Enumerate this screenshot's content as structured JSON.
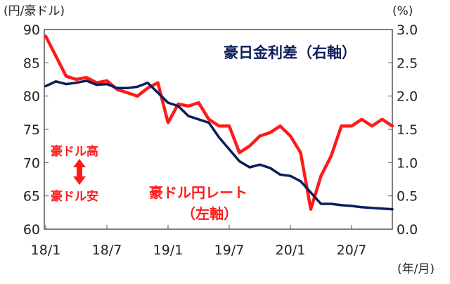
{
  "chart_data": {
    "type": "line",
    "left_axis_unit": "(円/豪ドル)",
    "right_axis_unit": "(%)",
    "x_axis_unit": "(年/月)",
    "x_ticks": [
      "18/1",
      "18/7",
      "19/1",
      "19/7",
      "20/1",
      "20/7"
    ],
    "y_left": {
      "ticks": [
        "90",
        "85",
        "80",
        "75",
        "70",
        "65",
        "60"
      ],
      "range": [
        60,
        90
      ]
    },
    "y_right": {
      "ticks": [
        "3.0",
        "2.5",
        "2.0",
        "1.5",
        "1.0",
        "0.5",
        "0.0"
      ],
      "range": [
        0,
        3
      ]
    },
    "grid": false,
    "series": [
      {
        "name": "豪ドル円レート",
        "axis": "left",
        "color": "#ff1a1a",
        "points": [
          [
            "2018-01",
            89.0
          ],
          [
            "2018-02",
            86.0
          ],
          [
            "2018-03",
            83.0
          ],
          [
            "2018-04",
            82.5
          ],
          [
            "2018-05",
            82.8
          ],
          [
            "2018-06",
            82.0
          ],
          [
            "2018-07",
            82.3
          ],
          [
            "2018-08",
            81.0
          ],
          [
            "2018-09",
            80.5
          ],
          [
            "2018-10",
            80.0
          ],
          [
            "2018-11",
            81.2
          ],
          [
            "2018-12",
            82.0
          ],
          [
            "2019-01",
            76.0
          ],
          [
            "2019-02",
            78.8
          ],
          [
            "2019-03",
            78.5
          ],
          [
            "2019-04",
            79.0
          ],
          [
            "2019-05",
            76.5
          ],
          [
            "2019-06",
            75.5
          ],
          [
            "2019-07",
            75.5
          ],
          [
            "2019-08",
            71.5
          ],
          [
            "2019-09",
            72.5
          ],
          [
            "2019-10",
            74.0
          ],
          [
            "2019-11",
            74.5
          ],
          [
            "2019-12",
            75.5
          ],
          [
            "2020-01",
            74.0
          ],
          [
            "2020-02",
            71.5
          ],
          [
            "2020-03",
            63.0
          ],
          [
            "2020-04",
            68.0
          ],
          [
            "2020-05",
            71.0
          ],
          [
            "2020-06",
            75.5
          ],
          [
            "2020-07",
            75.5
          ],
          [
            "2020-08",
            76.5
          ],
          [
            "2020-09",
            75.5
          ],
          [
            "2020-10",
            76.5
          ],
          [
            "2020-11",
            75.5
          ]
        ]
      },
      {
        "name": "豪日金利差",
        "axis": "right",
        "color": "#0d1d5c",
        "points": [
          [
            "2018-01",
            2.15
          ],
          [
            "2018-02",
            2.22
          ],
          [
            "2018-03",
            2.18
          ],
          [
            "2018-04",
            2.2
          ],
          [
            "2018-05",
            2.23
          ],
          [
            "2018-06",
            2.17
          ],
          [
            "2018-07",
            2.18
          ],
          [
            "2018-08",
            2.12
          ],
          [
            "2018-09",
            2.12
          ],
          [
            "2018-10",
            2.14
          ],
          [
            "2018-11",
            2.2
          ],
          [
            "2018-12",
            2.05
          ],
          [
            "2019-01",
            1.9
          ],
          [
            "2019-02",
            1.85
          ],
          [
            "2019-03",
            1.7
          ],
          [
            "2019-04",
            1.65
          ],
          [
            "2019-05",
            1.6
          ],
          [
            "2019-06",
            1.38
          ],
          [
            "2019-07",
            1.2
          ],
          [
            "2019-08",
            1.02
          ],
          [
            "2019-09",
            0.93
          ],
          [
            "2019-10",
            0.97
          ],
          [
            "2019-11",
            0.92
          ],
          [
            "2019-12",
            0.82
          ],
          [
            "2020-01",
            0.8
          ],
          [
            "2020-02",
            0.72
          ],
          [
            "2020-03",
            0.55
          ],
          [
            "2020-04",
            0.38
          ],
          [
            "2020-05",
            0.38
          ],
          [
            "2020-06",
            0.36
          ],
          [
            "2020-07",
            0.35
          ],
          [
            "2020-08",
            0.33
          ],
          [
            "2020-09",
            0.32
          ],
          [
            "2020-10",
            0.31
          ],
          [
            "2020-11",
            0.3
          ]
        ]
      }
    ],
    "annotations": {
      "rate_diff_label": "豪日金利差（右軸）",
      "fx_label_line1": "豪ドル円レート",
      "fx_label_line2": "（左軸）",
      "aud_high": "豪ドル高",
      "aud_low": "豪ドル安"
    }
  }
}
